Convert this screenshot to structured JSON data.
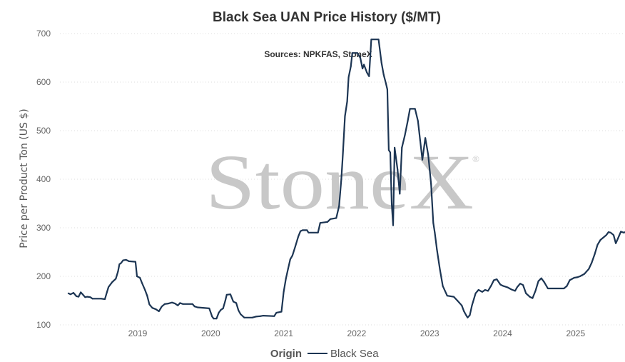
{
  "chart_data": {
    "type": "line",
    "title": "Black Sea UAN Price History ($/MT)",
    "subtitle": "Sources: NPKFAS, StoneX",
    "xlabel": "",
    "ylabel": "Price per Product Ton (US $)",
    "ylim": [
      100,
      700
    ],
    "yticks": [
      "700",
      "600",
      "500",
      "400",
      "300",
      "200",
      "100"
    ],
    "xticks": [
      "2019",
      "2020",
      "2021",
      "2022",
      "2023",
      "2024",
      "2025"
    ],
    "xlim": [
      2018.0,
      2025.82
    ],
    "grid": "horizontal dotted",
    "legend": {
      "title": "Origin",
      "position": "bottom-center"
    },
    "watermark": "StoneX",
    "watermark_mark": "®",
    "series": [
      {
        "name": "Black Sea",
        "color": "#1c3553",
        "points": [
          [
            2018.05,
            165
          ],
          [
            2018.08,
            163
          ],
          [
            2018.12,
            166
          ],
          [
            2018.16,
            159
          ],
          [
            2018.19,
            158
          ],
          [
            2018.22,
            167
          ],
          [
            2018.25,
            162
          ],
          [
            2018.28,
            157
          ],
          [
            2018.31,
            158
          ],
          [
            2018.35,
            157
          ],
          [
            2018.38,
            154
          ],
          [
            2018.5,
            154
          ],
          [
            2018.55,
            153
          ],
          [
            2018.58,
            168
          ],
          [
            2018.6,
            178
          ],
          [
            2018.65,
            188
          ],
          [
            2018.7,
            195
          ],
          [
            2018.73,
            210
          ],
          [
            2018.75,
            225
          ],
          [
            2018.77,
            227
          ],
          [
            2018.8,
            233
          ],
          [
            2018.84,
            234
          ],
          [
            2018.88,
            231
          ],
          [
            2018.97,
            230
          ],
          [
            2018.99,
            200
          ],
          [
            2019.03,
            197
          ],
          [
            2019.06,
            186
          ],
          [
            2019.1,
            172
          ],
          [
            2019.13,
            160
          ],
          [
            2019.16,
            142
          ],
          [
            2019.2,
            135
          ],
          [
            2019.25,
            132
          ],
          [
            2019.29,
            128
          ],
          [
            2019.33,
            138
          ],
          [
            2019.37,
            143
          ],
          [
            2019.42,
            144
          ],
          [
            2019.47,
            146
          ],
          [
            2019.51,
            144
          ],
          [
            2019.55,
            140
          ],
          [
            2019.58,
            145
          ],
          [
            2019.62,
            143
          ],
          [
            2019.75,
            143
          ],
          [
            2019.78,
            138
          ],
          [
            2019.82,
            136
          ],
          [
            2019.98,
            134
          ],
          [
            2020.02,
            117
          ],
          [
            2020.04,
            113
          ],
          [
            2020.08,
            113
          ],
          [
            2020.11,
            125
          ],
          [
            2020.14,
            131
          ],
          [
            2020.17,
            134
          ],
          [
            2020.2,
            150
          ],
          [
            2020.22,
            162
          ],
          [
            2020.27,
            163
          ],
          [
            2020.31,
            148
          ],
          [
            2020.35,
            145
          ],
          [
            2020.38,
            130
          ],
          [
            2020.41,
            122
          ],
          [
            2020.46,
            115
          ],
          [
            2020.57,
            115
          ],
          [
            2020.62,
            117
          ],
          [
            2020.68,
            118
          ],
          [
            2020.72,
            119
          ],
          [
            2020.87,
            118
          ],
          [
            2020.9,
            125
          ],
          [
            2020.97,
            127
          ],
          [
            2021.0,
            168
          ],
          [
            2021.03,
            195
          ],
          [
            2021.06,
            215
          ],
          [
            2021.09,
            235
          ],
          [
            2021.12,
            243
          ],
          [
            2021.16,
            262
          ],
          [
            2021.2,
            282
          ],
          [
            2021.23,
            293
          ],
          [
            2021.26,
            295
          ],
          [
            2021.32,
            295
          ],
          [
            2021.34,
            290
          ],
          [
            2021.47,
            290
          ],
          [
            2021.5,
            310
          ],
          [
            2021.6,
            312
          ],
          [
            2021.64,
            318
          ],
          [
            2021.72,
            320
          ],
          [
            2021.76,
            345
          ],
          [
            2021.79,
            400
          ],
          [
            2021.81,
            450
          ],
          [
            2021.84,
            530
          ],
          [
            2021.87,
            560
          ],
          [
            2021.89,
            610
          ],
          [
            2021.92,
            632
          ],
          [
            2021.94,
            660
          ],
          [
            2022.01,
            660
          ],
          [
            2022.05,
            650
          ],
          [
            2022.08,
            628
          ],
          [
            2022.1,
            636
          ],
          [
            2022.14,
            620
          ],
          [
            2022.17,
            612
          ],
          [
            2022.2,
            688
          ],
          [
            2022.3,
            688
          ],
          [
            2022.34,
            640
          ],
          [
            2022.37,
            615
          ],
          [
            2022.4,
            598
          ],
          [
            2022.42,
            585
          ],
          [
            2022.44,
            460
          ],
          [
            2022.46,
            455
          ],
          [
            2022.48,
            350
          ],
          [
            2022.5,
            305
          ],
          [
            2022.52,
            465
          ],
          [
            2022.56,
            420
          ],
          [
            2022.59,
            370
          ],
          [
            2022.62,
            465
          ],
          [
            2022.66,
            490
          ],
          [
            2022.7,
            520
          ],
          [
            2022.73,
            545
          ],
          [
            2022.8,
            545
          ],
          [
            2022.84,
            520
          ],
          [
            2022.87,
            480
          ],
          [
            2022.9,
            440
          ],
          [
            2022.94,
            485
          ],
          [
            2022.98,
            450
          ],
          [
            2023.02,
            390
          ],
          [
            2023.05,
            310
          ],
          [
            2023.07,
            290
          ],
          [
            2023.1,
            255
          ],
          [
            2023.14,
            215
          ],
          [
            2023.18,
            180
          ],
          [
            2023.24,
            160
          ],
          [
            2023.33,
            158
          ],
          [
            2023.38,
            150
          ],
          [
            2023.44,
            140
          ],
          [
            2023.47,
            128
          ],
          [
            2023.5,
            120
          ],
          [
            2023.52,
            115
          ],
          [
            2023.55,
            120
          ],
          [
            2023.58,
            140
          ],
          [
            2023.63,
            165
          ],
          [
            2023.67,
            172
          ],
          [
            2023.72,
            168
          ],
          [
            2023.76,
            172
          ],
          [
            2023.8,
            170
          ],
          [
            2023.84,
            180
          ],
          [
            2023.88,
            192
          ],
          [
            2023.92,
            194
          ],
          [
            2023.97,
            183
          ],
          [
            2024.01,
            180
          ],
          [
            2024.07,
            177
          ],
          [
            2024.12,
            173
          ],
          [
            2024.17,
            170
          ],
          [
            2024.2,
            178
          ],
          [
            2024.24,
            185
          ],
          [
            2024.28,
            182
          ],
          [
            2024.32,
            165
          ],
          [
            2024.37,
            158
          ],
          [
            2024.41,
            155
          ],
          [
            2024.45,
            170
          ],
          [
            2024.49,
            190
          ],
          [
            2024.53,
            196
          ],
          [
            2024.57,
            188
          ],
          [
            2024.62,
            175
          ],
          [
            2024.72,
            175
          ],
          [
            2024.78,
            175
          ],
          [
            2024.84,
            175
          ],
          [
            2024.88,
            180
          ],
          [
            2024.92,
            192
          ],
          [
            2024.98,
            197
          ],
          [
            2025.02,
            198
          ],
          [
            2025.06,
            200
          ],
          [
            2025.12,
            205
          ],
          [
            2025.18,
            215
          ],
          [
            2025.22,
            228
          ],
          [
            2025.26,
            245
          ],
          [
            2025.3,
            265
          ],
          [
            2025.34,
            275
          ],
          [
            2025.38,
            280
          ],
          [
            2025.42,
            285
          ],
          [
            2025.45,
            291
          ],
          [
            2025.48,
            290
          ],
          [
            2025.52,
            285
          ],
          [
            2025.55,
            268
          ],
          [
            2025.58,
            278
          ],
          [
            2025.62,
            292
          ],
          [
            2025.66,
            290
          ],
          [
            2025.7,
            292
          ],
          [
            2025.73,
            270
          ],
          [
            2025.77,
            262
          ],
          [
            2025.8,
            275
          ],
          [
            2025.82,
            278
          ]
        ]
      }
    ]
  }
}
